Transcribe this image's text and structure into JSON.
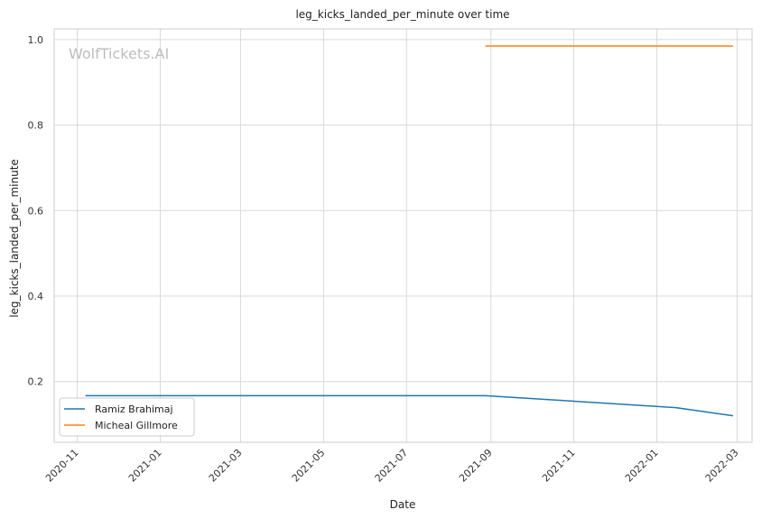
{
  "chart_data": {
    "type": "line",
    "title": "leg_kicks_landed_per_minute over time",
    "xlabel": "Date",
    "ylabel": "leg_kicks_landed_per_minute",
    "watermark": "WolfTickets.AI",
    "xlim": [
      "2020-10-15",
      "2022-03-12"
    ],
    "ylim": [
      0.058,
      1.025
    ],
    "x_ticks": [
      "2020-11",
      "2021-01",
      "2021-03",
      "2021-05",
      "2021-07",
      "2021-09",
      "2021-11",
      "2022-01",
      "2022-03"
    ],
    "y_ticks": [
      "0.2",
      "0.4",
      "0.6",
      "0.8",
      "1.0"
    ],
    "grid": true,
    "legend_position": "lower-left",
    "series": [
      {
        "name": "Ramiz Brahimaj",
        "color": "#1f77b4",
        "x": [
          "2020-11-07",
          "2021-08-28",
          "2022-01-15",
          "2022-02-26"
        ],
        "y": [
          0.167,
          0.167,
          0.139,
          0.12
        ]
      },
      {
        "name": "Micheal Gillmore",
        "color": "#ff7f0e",
        "x": [
          "2021-08-28",
          "2022-02-26"
        ],
        "y": [
          0.985,
          0.985
        ]
      }
    ]
  }
}
